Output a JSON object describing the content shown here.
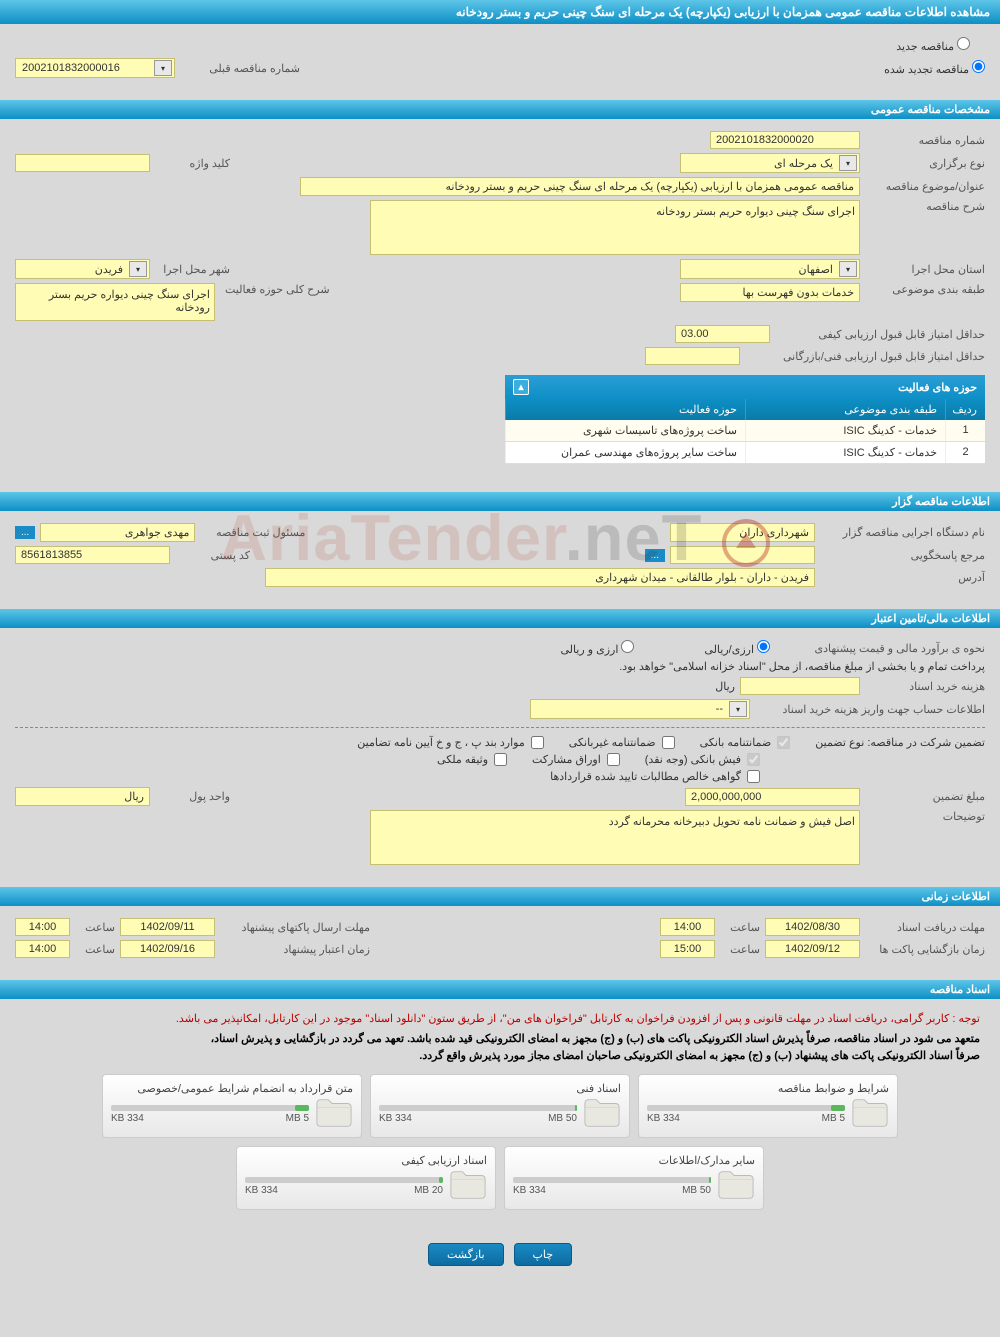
{
  "page_title": "مشاهده اطلاعات مناقصه عمومی همزمان با ارزیابی (یکپارچه) یک مرحله ای سنگ چینی حریم و بستر رودخانه",
  "tender_type": {
    "new_label": "مناقصه جدید",
    "renewed_label": "مناقصه تجدید شده",
    "prev_number_label": "شماره مناقصه قبلی",
    "prev_number": "2002101832000016"
  },
  "sections": {
    "general": "مشخصات مناقصه عمومی",
    "organizer": "اطلاعات مناقصه گزار",
    "financial": "اطلاعات مالی/تامین اعتبار",
    "timing": "اطلاعات زمانی",
    "documents": "اسناد مناقصه"
  },
  "general": {
    "tender_no_label": "شماره مناقصه",
    "tender_no": "2002101832000020",
    "type_label": "نوع برگزاری",
    "type": "یک مرحله ای",
    "keyword_label": "کلید واژه",
    "keyword": "",
    "subject_label": "عنوان/موضوع مناقصه",
    "subject": "مناقصه عمومی همزمان با ارزیابی (یکپارچه) یک مرحله ای سنگ چینی حریم و بستر رودخانه",
    "desc_label": "شرح مناقصه",
    "desc": "اجرای سنگ چینی دیواره حریم بستر رودخانه",
    "province_label": "استان محل اجرا",
    "province": "اصفهان",
    "city_label": "شهر محل اجرا",
    "city": "فریدن",
    "category_label": "طبقه بندی موضوعی",
    "category": "خدمات بدون فهرست بها",
    "activity_desc_label": "شرح کلی حوزه فعالیت",
    "activity_desc": "اجرای سنگ چینی دیواره حریم بستر رودخانه",
    "min_quality_score_label": "حداقل امتیاز قابل قبول ارزیابی کیفی",
    "min_quality_score": "03.00",
    "min_tech_score_label": "حداقل امتیاز قابل قبول ارزیابی فنی/بازرگانی",
    "min_tech_score": ""
  },
  "activity_table": {
    "title": "حوزه های فعالیت",
    "col_idx": "ردیف",
    "col_category": "طبقه بندی موضوعی",
    "col_area": "حوزه فعالیت",
    "rows": [
      {
        "idx": "1",
        "cat": "خدمات - کدینگ ISIC",
        "area": "ساخت پروژه‌های تاسیسات شهری"
      },
      {
        "idx": "2",
        "cat": "خدمات - کدینگ ISIC",
        "area": "ساخت سایر پروژه‌های مهندسی عمران"
      }
    ]
  },
  "organizer": {
    "org_label": "نام دستگاه اجرایی مناقصه گزار",
    "org": "شهرداری داران",
    "registrar_label": "مسئول ثبت مناقصه",
    "registrar": "مهدی جواهری",
    "responder_label": "مرجع پاسخگویی",
    "responder": "",
    "postal_label": "کد پستی",
    "postal": "8561813855",
    "address_label": "آدرس",
    "address": "فریدن - داران - بلوار طالقانی - میدان شهرداری"
  },
  "financial": {
    "estimate_label": "نحوه ی برآورد مالی و قیمت پیشنهادی",
    "opt_rial": "ارزی/ریالی",
    "opt_currency": "ارزی و ریالی",
    "payment_note": "پرداخت تمام و یا بخشی از مبلغ مناقصه، از محل \"اسناد خزانه اسلامی\" خواهد بود.",
    "doc_cost_label": "هزینه خرید اسناد",
    "doc_cost": "",
    "currency_unit": "ریال",
    "account_label": "اطلاعات حساب جهت واریز هزینه خرید اسناد",
    "account": "--",
    "guarantee_type_label": "تضمین شرکت در مناقصه:    نوع تضمین",
    "opt_bank_guarantee": "ضمانتنامه بانکی",
    "opt_nonbank_guarantee": "ضمانتنامه غیربانکی",
    "opt_clauses": "موارد بند پ ، ج و خ آیین نامه تضامین",
    "opt_bank_receipt": "فیش بانکی (وجه نقد)",
    "opt_participation": "اوراق مشارکت",
    "opt_property": "وثیقه ملکی",
    "opt_contract_receivables": "گواهی خالص مطالبات تایید شده قراردادها",
    "amount_label": "مبلغ تضمین",
    "amount": "2,000,000,000",
    "amount_unit_label": "واحد پول",
    "amount_unit": "ریال",
    "notes_label": "توضیحات",
    "notes": "اصل فیش و ضمانت نامه تحویل دبیرخانه محرمانه گردد"
  },
  "timing": {
    "doc_deadline_label": "مهلت دریافت اسناد",
    "doc_deadline_date": "1402/08/30",
    "doc_deadline_time": "14:00",
    "proposal_deadline_label": "مهلت ارسال پاکتهای پیشنهاد",
    "proposal_deadline_date": "1402/09/11",
    "proposal_deadline_time": "14:00",
    "opening_label": "زمان بازگشایی پاکت ها",
    "opening_date": "1402/09/12",
    "opening_time": "15:00",
    "validity_label": "زمان اعتبار پیشنهاد",
    "validity_date": "1402/09/16",
    "validity_time": "14:00",
    "time_label": "ساعت"
  },
  "documents": {
    "notice_red": "توجه : کاربر گرامی، دریافت اسناد در مهلت قانونی و پس از افزودن فراخوان به کارتابل \"فراخوان های من\"، از طریق ستون \"دانلود اسناد\" موجود در این کارتابل، امکانپذیر می باشد.",
    "notice_1": "متعهد می شود در اسناد مناقصه، صرفاً پذیرش اسناد الکترونیکی پاکت های (ب) و (ج) مجهز به امضای الکترونیکی قید شده باشد. تعهد می گردد در بازگشایی و پذیرش اسناد،",
    "notice_2": "صرفاً اسناد الکترونیکی پاکت های پیشنهاد (ب) و (ج) مجهز به امضای الکترونیکی صاحبان امضای مجاز مورد پذیرش واقع گردد.",
    "files": [
      {
        "title": "شرایط و ضوابط مناقصه",
        "used": "334 KB",
        "limit": "5 MB",
        "pct": 7
      },
      {
        "title": "اسناد فنی",
        "used": "334 KB",
        "limit": "50 MB",
        "pct": 1
      },
      {
        "title": "متن قرارداد به انضمام شرایط عمومی/خصوصی",
        "used": "334 KB",
        "limit": "5 MB",
        "pct": 7
      },
      {
        "title": "سایر مدارک/اطلاعات",
        "used": "334 KB",
        "limit": "50 MB",
        "pct": 1
      },
      {
        "title": "اسناد ارزیابی کیفی",
        "used": "334 KB",
        "limit": "20 MB",
        "pct": 2
      }
    ]
  },
  "buttons": {
    "print": "چاپ",
    "back": "بازگشت",
    "dots": "..."
  },
  "watermark": {
    "brand": "AriaTender",
    "suffix": ".neT"
  },
  "colors": {
    "header_grad_top": "#5dc5e8",
    "header_grad_bottom": "#0d8fc5",
    "yellow_field": "#fffcb5",
    "yellow_border": "#c5c074",
    "bg": "#d9d9d9"
  }
}
